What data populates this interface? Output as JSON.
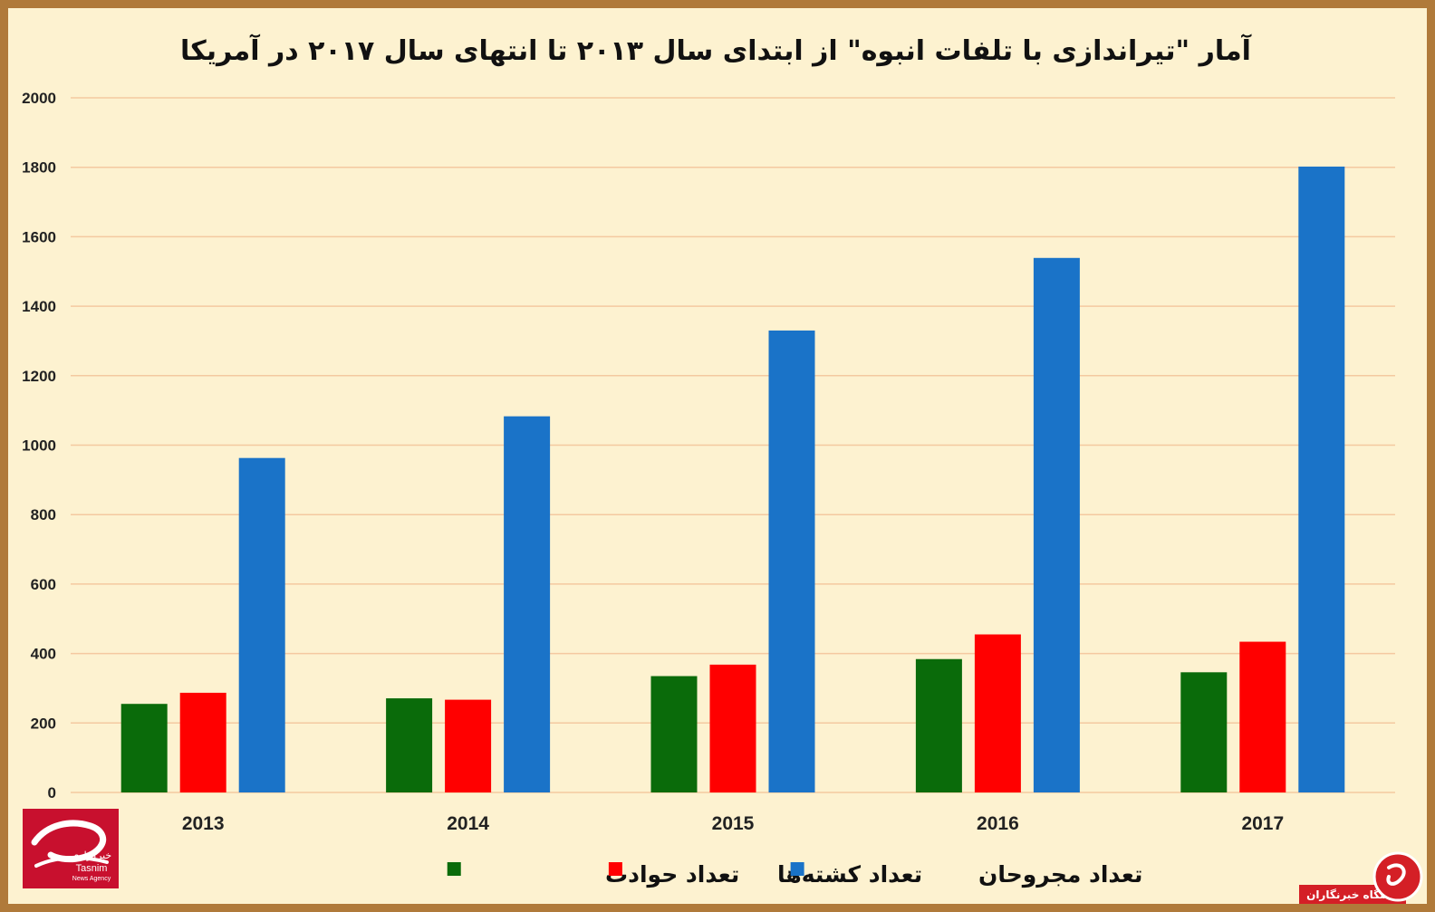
{
  "chart_data": {
    "type": "bar",
    "title": "آمار \"تیراندازی با تلفات انبوه\" از ابتدای سال ۲۰۱۳ تا انتهای سال ۲۰۱۷ در آمریکا",
    "categories": [
      "2013",
      "2014",
      "2015",
      "2016",
      "2017"
    ],
    "series": [
      {
        "name": "تعداد حوادث",
        "color": "#0a6b0a",
        "values": [
          255,
          271,
          335,
          384,
          346
        ]
      },
      {
        "name": "تعداد کشته‌ها",
        "color": "#ff0000",
        "values": [
          287,
          267,
          368,
          455,
          434
        ]
      },
      {
        "name": "تعداد مجروحان",
        "color": "#1a73c8",
        "values": [
          963,
          1083,
          1330,
          1539,
          1802
        ]
      }
    ],
    "ylim": [
      0,
      2000
    ],
    "yticks": [
      0,
      200,
      400,
      600,
      800,
      1000,
      1200,
      1400,
      1600,
      1800,
      2000
    ],
    "grid": true,
    "gridline_color": "#f4c9a0",
    "legend_position": "bottom"
  },
  "logo": {
    "text_fa": "خبرگزاری",
    "text_en": "Tasnim",
    "sub_en": "News Agency",
    "color": "#c8102e"
  },
  "watermark": {
    "text": "باشگاه خبرنگاران",
    "color": "#d41f26"
  }
}
